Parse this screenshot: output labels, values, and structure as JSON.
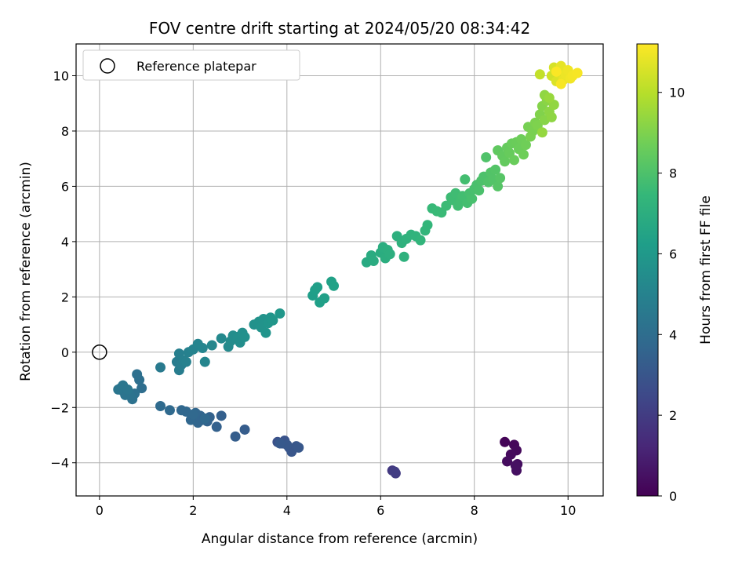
{
  "chart_data": {
    "type": "scatter",
    "title": "FOV centre drift starting at 2024/05/20 08:34:42",
    "xlabel": "Angular distance from reference (arcmin)",
    "ylabel": "Rotation from reference (arcmin)",
    "xlim": [
      -0.5,
      10.75
    ],
    "ylim": [
      -5.2,
      11.15
    ],
    "xticks": [
      0,
      2,
      4,
      6,
      8,
      10
    ],
    "yticks": [
      -4,
      -2,
      0,
      2,
      4,
      6,
      8,
      10
    ],
    "grid": true,
    "legend": {
      "position": "top-left",
      "entries": [
        "Reference platepar"
      ]
    },
    "reference_point": {
      "x": 0,
      "y": 0
    },
    "colorbar": {
      "label": "Hours from first FF file",
      "range": [
        0,
        11.2
      ],
      "ticks": [
        0,
        2,
        4,
        6,
        8,
        10
      ],
      "colormap": [
        "#440154",
        "#482878",
        "#3e4989",
        "#31688e",
        "#26828e",
        "#1f9e89",
        "#35b779",
        "#6ece58",
        "#b5de2b",
        "#fde725"
      ]
    },
    "points": [
      {
        "x": 8.65,
        "y": -3.25,
        "t": 0.1
      },
      {
        "x": 8.85,
        "y": -3.35,
        "t": 0.2
      },
      {
        "x": 8.9,
        "y": -3.55,
        "t": 0.25
      },
      {
        "x": 8.78,
        "y": -3.7,
        "t": 0.3
      },
      {
        "x": 8.7,
        "y": -3.95,
        "t": 0.35
      },
      {
        "x": 8.92,
        "y": -4.05,
        "t": 0.4
      },
      {
        "x": 8.9,
        "y": -4.28,
        "t": 0.45
      },
      {
        "x": 8.88,
        "y": -4.1,
        "t": 0.5
      },
      {
        "x": 6.25,
        "y": -4.28,
        "t": 1.9
      },
      {
        "x": 6.32,
        "y": -4.38,
        "t": 2.0
      },
      {
        "x": 6.3,
        "y": -4.32,
        "t": 2.05
      },
      {
        "x": 3.8,
        "y": -3.25,
        "t": 2.8
      },
      {
        "x": 3.9,
        "y": -3.3,
        "t": 2.85
      },
      {
        "x": 3.95,
        "y": -3.2,
        "t": 2.9
      },
      {
        "x": 4.05,
        "y": -3.45,
        "t": 2.95
      },
      {
        "x": 4.1,
        "y": -3.6,
        "t": 3.0
      },
      {
        "x": 4.2,
        "y": -3.4,
        "t": 3.05
      },
      {
        "x": 4.25,
        "y": -3.45,
        "t": 3.1
      },
      {
        "x": 4.0,
        "y": -3.35,
        "t": 3.1
      },
      {
        "x": 3.85,
        "y": -3.3,
        "t": 3.15
      },
      {
        "x": 3.1,
        "y": -2.8,
        "t": 3.3
      },
      {
        "x": 2.9,
        "y": -3.05,
        "t": 3.35
      },
      {
        "x": 2.6,
        "y": -2.3,
        "t": 3.4
      },
      {
        "x": 2.5,
        "y": -2.7,
        "t": 3.45
      },
      {
        "x": 2.35,
        "y": -2.35,
        "t": 3.5
      },
      {
        "x": 2.3,
        "y": -2.5,
        "t": 3.55
      },
      {
        "x": 2.2,
        "y": -2.45,
        "t": 3.6
      },
      {
        "x": 2.15,
        "y": -2.3,
        "t": 3.62
      },
      {
        "x": 2.1,
        "y": -2.55,
        "t": 3.65
      },
      {
        "x": 2.05,
        "y": -2.2,
        "t": 3.68
      },
      {
        "x": 1.95,
        "y": -2.45,
        "t": 3.7
      },
      {
        "x": 1.85,
        "y": -2.15,
        "t": 3.72
      },
      {
        "x": 1.75,
        "y": -2.1,
        "t": 3.75
      },
      {
        "x": 2.0,
        "y": -2.25,
        "t": 3.78
      },
      {
        "x": 2.25,
        "y": -2.4,
        "t": 3.8
      },
      {
        "x": 1.5,
        "y": -2.1,
        "t": 3.85
      },
      {
        "x": 1.3,
        "y": -1.95,
        "t": 3.9
      },
      {
        "x": 0.9,
        "y": -1.3,
        "t": 4.0
      },
      {
        "x": 0.85,
        "y": -1.0,
        "t": 4.05
      },
      {
        "x": 0.8,
        "y": -0.8,
        "t": 4.1
      },
      {
        "x": 0.75,
        "y": -1.5,
        "t": 4.15
      },
      {
        "x": 0.7,
        "y": -1.7,
        "t": 4.2
      },
      {
        "x": 0.65,
        "y": -1.55,
        "t": 4.25
      },
      {
        "x": 0.55,
        "y": -1.55,
        "t": 4.3
      },
      {
        "x": 0.5,
        "y": -1.4,
        "t": 4.32
      },
      {
        "x": 0.45,
        "y": -1.3,
        "t": 4.35
      },
      {
        "x": 0.4,
        "y": -1.35,
        "t": 4.38
      },
      {
        "x": 0.5,
        "y": -1.2,
        "t": 4.4
      },
      {
        "x": 0.6,
        "y": -1.35,
        "t": 4.42
      },
      {
        "x": 1.3,
        "y": -0.55,
        "t": 4.6
      },
      {
        "x": 1.65,
        "y": -0.35,
        "t": 4.7
      },
      {
        "x": 1.7,
        "y": -0.65,
        "t": 4.75
      },
      {
        "x": 1.75,
        "y": -0.45,
        "t": 4.8
      },
      {
        "x": 1.7,
        "y": -0.05,
        "t": 4.85
      },
      {
        "x": 1.8,
        "y": -0.3,
        "t": 4.9
      },
      {
        "x": 1.85,
        "y": -0.35,
        "t": 4.92
      },
      {
        "x": 1.9,
        "y": 0.0,
        "t": 4.95
      },
      {
        "x": 2.0,
        "y": 0.1,
        "t": 5.0
      },
      {
        "x": 2.1,
        "y": 0.3,
        "t": 5.05
      },
      {
        "x": 2.2,
        "y": 0.15,
        "t": 5.1
      },
      {
        "x": 2.25,
        "y": -0.35,
        "t": 5.12
      },
      {
        "x": 2.4,
        "y": 0.25,
        "t": 5.2
      },
      {
        "x": 2.6,
        "y": 0.5,
        "t": 5.3
      },
      {
        "x": 2.75,
        "y": 0.2,
        "t": 5.35
      },
      {
        "x": 2.8,
        "y": 0.4,
        "t": 5.4
      },
      {
        "x": 2.85,
        "y": 0.6,
        "t": 5.45
      },
      {
        "x": 2.95,
        "y": 0.55,
        "t": 5.5
      },
      {
        "x": 3.0,
        "y": 0.35,
        "t": 5.52
      },
      {
        "x": 3.05,
        "y": 0.7,
        "t": 5.55
      },
      {
        "x": 3.1,
        "y": 0.55,
        "t": 5.58
      },
      {
        "x": 3.3,
        "y": 1.0,
        "t": 5.65
      },
      {
        "x": 3.4,
        "y": 1.1,
        "t": 5.7
      },
      {
        "x": 3.45,
        "y": 0.9,
        "t": 5.72
      },
      {
        "x": 3.5,
        "y": 1.2,
        "t": 5.75
      },
      {
        "x": 3.55,
        "y": 0.7,
        "t": 5.78
      },
      {
        "x": 3.6,
        "y": 1.05,
        "t": 5.8
      },
      {
        "x": 3.65,
        "y": 1.25,
        "t": 5.82
      },
      {
        "x": 3.7,
        "y": 1.15,
        "t": 5.85
      },
      {
        "x": 3.85,
        "y": 1.4,
        "t": 5.9
      },
      {
        "x": 4.55,
        "y": 2.05,
        "t": 6.2
      },
      {
        "x": 4.6,
        "y": 2.25,
        "t": 6.25
      },
      {
        "x": 4.65,
        "y": 2.35,
        "t": 6.28
      },
      {
        "x": 4.7,
        "y": 1.8,
        "t": 6.3
      },
      {
        "x": 4.8,
        "y": 1.95,
        "t": 6.33
      },
      {
        "x": 4.95,
        "y": 2.55,
        "t": 6.38
      },
      {
        "x": 5.0,
        "y": 2.4,
        "t": 6.4
      },
      {
        "x": 5.7,
        "y": 3.25,
        "t": 6.8
      },
      {
        "x": 5.8,
        "y": 3.5,
        "t": 6.85
      },
      {
        "x": 5.85,
        "y": 3.3,
        "t": 6.88
      },
      {
        "x": 6.0,
        "y": 3.6,
        "t": 6.92
      },
      {
        "x": 6.05,
        "y": 3.8,
        "t": 6.95
      },
      {
        "x": 6.1,
        "y": 3.4,
        "t": 6.98
      },
      {
        "x": 6.15,
        "y": 3.7,
        "t": 7.0
      },
      {
        "x": 6.2,
        "y": 3.55,
        "t": 7.02
      },
      {
        "x": 6.35,
        "y": 4.2,
        "t": 7.08
      },
      {
        "x": 6.45,
        "y": 3.95,
        "t": 7.12
      },
      {
        "x": 6.5,
        "y": 3.45,
        "t": 7.15
      },
      {
        "x": 6.55,
        "y": 4.1,
        "t": 7.18
      },
      {
        "x": 6.65,
        "y": 4.25,
        "t": 7.22
      },
      {
        "x": 6.75,
        "y": 4.2,
        "t": 7.25
      },
      {
        "x": 6.85,
        "y": 4.05,
        "t": 7.3
      },
      {
        "x": 6.95,
        "y": 4.4,
        "t": 7.35
      },
      {
        "x": 7.0,
        "y": 4.6,
        "t": 7.38
      },
      {
        "x": 7.1,
        "y": 5.2,
        "t": 7.5
      },
      {
        "x": 7.2,
        "y": 5.1,
        "t": 7.55
      },
      {
        "x": 7.3,
        "y": 5.05,
        "t": 7.58
      },
      {
        "x": 7.4,
        "y": 5.3,
        "t": 7.62
      },
      {
        "x": 7.5,
        "y": 5.6,
        "t": 7.65
      },
      {
        "x": 7.55,
        "y": 5.5,
        "t": 7.68
      },
      {
        "x": 7.6,
        "y": 5.75,
        "t": 7.7
      },
      {
        "x": 7.65,
        "y": 5.3,
        "t": 7.72
      },
      {
        "x": 7.7,
        "y": 5.45,
        "t": 7.75
      },
      {
        "x": 7.75,
        "y": 5.65,
        "t": 7.78
      },
      {
        "x": 7.8,
        "y": 6.25,
        "t": 7.8
      },
      {
        "x": 7.85,
        "y": 5.4,
        "t": 7.82
      },
      {
        "x": 7.9,
        "y": 5.75,
        "t": 7.85
      },
      {
        "x": 7.95,
        "y": 5.55,
        "t": 7.88
      },
      {
        "x": 8.0,
        "y": 5.9,
        "t": 7.9
      },
      {
        "x": 8.05,
        "y": 6.05,
        "t": 7.92
      },
      {
        "x": 8.1,
        "y": 5.85,
        "t": 7.95
      },
      {
        "x": 8.15,
        "y": 6.2,
        "t": 7.98
      },
      {
        "x": 8.2,
        "y": 6.35,
        "t": 8.0
      },
      {
        "x": 8.25,
        "y": 7.05,
        "t": 8.05
      },
      {
        "x": 8.3,
        "y": 6.15,
        "t": 8.08
      },
      {
        "x": 8.35,
        "y": 6.5,
        "t": 8.1
      },
      {
        "x": 8.4,
        "y": 6.25,
        "t": 8.12
      },
      {
        "x": 8.45,
        "y": 6.6,
        "t": 8.15
      },
      {
        "x": 8.5,
        "y": 6.0,
        "t": 8.18
      },
      {
        "x": 8.55,
        "y": 6.3,
        "t": 8.2
      },
      {
        "x": 8.5,
        "y": 7.3,
        "t": 8.4
      },
      {
        "x": 8.6,
        "y": 7.1,
        "t": 8.45
      },
      {
        "x": 8.65,
        "y": 6.9,
        "t": 8.48
      },
      {
        "x": 8.7,
        "y": 7.4,
        "t": 8.52
      },
      {
        "x": 8.75,
        "y": 7.2,
        "t": 8.55
      },
      {
        "x": 8.8,
        "y": 7.55,
        "t": 8.58
      },
      {
        "x": 8.85,
        "y": 6.95,
        "t": 8.6
      },
      {
        "x": 8.9,
        "y": 7.6,
        "t": 8.62
      },
      {
        "x": 8.95,
        "y": 7.35,
        "t": 8.65
      },
      {
        "x": 9.0,
        "y": 7.7,
        "t": 8.68
      },
      {
        "x": 9.05,
        "y": 7.15,
        "t": 8.7
      },
      {
        "x": 9.1,
        "y": 7.5,
        "t": 8.72
      },
      {
        "x": 9.15,
        "y": 8.15,
        "t": 8.85
      },
      {
        "x": 9.2,
        "y": 7.8,
        "t": 8.88
      },
      {
        "x": 9.25,
        "y": 8.0,
        "t": 8.9
      },
      {
        "x": 9.3,
        "y": 8.3,
        "t": 8.95
      },
      {
        "x": 9.35,
        "y": 8.2,
        "t": 9.0
      },
      {
        "x": 9.4,
        "y": 8.6,
        "t": 9.05
      },
      {
        "x": 9.45,
        "y": 8.9,
        "t": 9.1
      },
      {
        "x": 9.5,
        "y": 8.4,
        "t": 9.15
      },
      {
        "x": 9.55,
        "y": 9.1,
        "t": 9.2
      },
      {
        "x": 9.6,
        "y": 8.7,
        "t": 9.25
      },
      {
        "x": 9.65,
        "y": 8.5,
        "t": 9.28
      },
      {
        "x": 9.5,
        "y": 9.3,
        "t": 9.3
      },
      {
        "x": 9.7,
        "y": 8.95,
        "t": 9.35
      },
      {
        "x": 9.45,
        "y": 7.95,
        "t": 9.38
      },
      {
        "x": 9.6,
        "y": 9.2,
        "t": 9.45
      },
      {
        "x": 9.4,
        "y": 10.05,
        "t": 10.2
      },
      {
        "x": 9.65,
        "y": 10.0,
        "t": 10.4
      },
      {
        "x": 9.7,
        "y": 10.3,
        "t": 10.5
      },
      {
        "x": 9.75,
        "y": 9.8,
        "t": 10.6
      },
      {
        "x": 9.8,
        "y": 10.1,
        "t": 10.7
      },
      {
        "x": 9.85,
        "y": 10.35,
        "t": 10.8
      },
      {
        "x": 9.9,
        "y": 9.85,
        "t": 10.85
      },
      {
        "x": 9.95,
        "y": 10.05,
        "t": 10.9
      },
      {
        "x": 10.0,
        "y": 10.2,
        "t": 10.95
      },
      {
        "x": 10.05,
        "y": 9.9,
        "t": 11.0
      },
      {
        "x": 10.1,
        "y": 10.0,
        "t": 11.05
      },
      {
        "x": 10.2,
        "y": 10.1,
        "t": 11.1
      },
      {
        "x": 9.85,
        "y": 9.7,
        "t": 11.1
      },
      {
        "x": 9.75,
        "y": 10.15,
        "t": 11.15
      }
    ]
  }
}
